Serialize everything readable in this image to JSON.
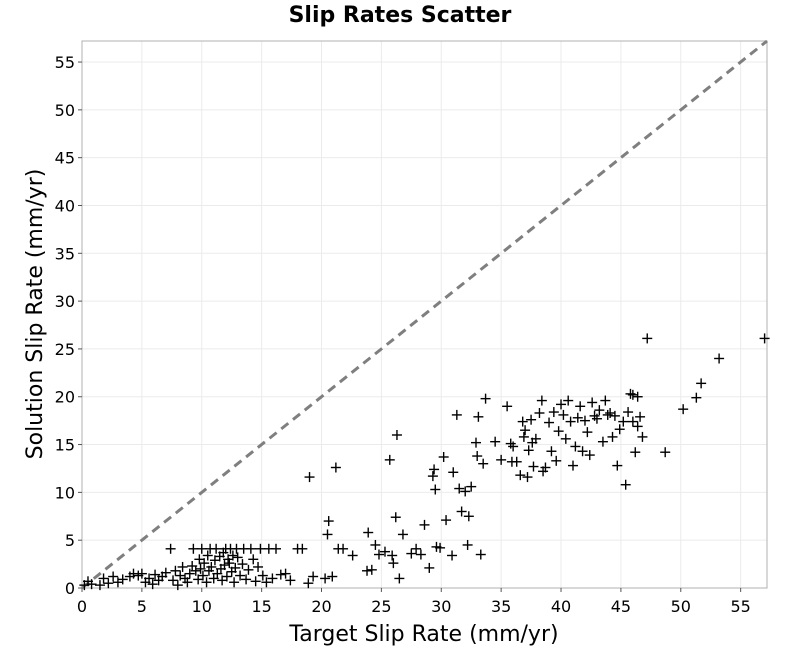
{
  "chart_data": {
    "type": "scatter",
    "title": "Slip Rates Scatter",
    "xlabel": "Target Slip Rate (mm/yr)",
    "ylabel": "Solution Slip Rate (mm/yr)",
    "xlim": [
      0,
      57.2
    ],
    "ylim": [
      0,
      57.2
    ],
    "xticks": [
      "0",
      "5",
      "10",
      "15",
      "20",
      "25",
      "30",
      "35",
      "40",
      "45",
      "50",
      "55"
    ],
    "yticks": [
      "0",
      "5",
      "10",
      "15",
      "20",
      "25",
      "30",
      "35",
      "40",
      "45",
      "50",
      "55"
    ],
    "grid": true,
    "marker": "plus",
    "reference_line": {
      "style": "dashed",
      "color": "#7f7f7f",
      "from": [
        0,
        0
      ],
      "to": [
        57.2,
        57.2
      ]
    },
    "series": [
      {
        "color": "#000000",
        "points": [
          [
            0.2,
            0.3
          ],
          [
            0.5,
            0.7
          ],
          [
            0.8,
            0.4
          ],
          [
            1.5,
            0.3
          ],
          [
            1.8,
            1.0
          ],
          [
            2.2,
            0.5
          ],
          [
            2.6,
            1.2
          ],
          [
            3.0,
            0.6
          ],
          [
            3.4,
            0.9
          ],
          [
            4.0,
            1.2
          ],
          [
            4.3,
            1.5
          ],
          [
            4.7,
            1.3
          ],
          [
            5.0,
            1.5
          ],
          [
            5.3,
            0.6
          ],
          [
            5.6,
            1.0
          ],
          [
            5.9,
            0.4
          ],
          [
            6.1,
            1.4
          ],
          [
            6.4,
            0.8
          ],
          [
            6.7,
            1.2
          ],
          [
            7.0,
            1.6
          ],
          [
            7.4,
            4.1
          ],
          [
            7.6,
            0.8
          ],
          [
            7.8,
            1.8
          ],
          [
            8.0,
            0.3
          ],
          [
            8.2,
            1.3
          ],
          [
            8.4,
            2.2
          ],
          [
            8.6,
            1.0
          ],
          [
            8.8,
            0.6
          ],
          [
            9.0,
            1.5
          ],
          [
            9.2,
            2.3
          ],
          [
            9.3,
            4.1
          ],
          [
            9.5,
            1.8
          ],
          [
            9.7,
            0.9
          ],
          [
            9.8,
            3.0
          ],
          [
            9.9,
            2.0
          ],
          [
            10.0,
            4.1
          ],
          [
            10.1,
            1.3
          ],
          [
            10.2,
            2.6
          ],
          [
            10.4,
            0.6
          ],
          [
            10.5,
            3.4
          ],
          [
            10.6,
            1.8
          ],
          [
            10.7,
            4.1
          ],
          [
            10.8,
            2.2
          ],
          [
            11.0,
            1.0
          ],
          [
            11.1,
            2.9
          ],
          [
            11.2,
            4.1
          ],
          [
            11.3,
            1.5
          ],
          [
            11.5,
            3.3
          ],
          [
            11.6,
            2.0
          ],
          [
            11.7,
            0.8
          ],
          [
            11.8,
            3.7
          ],
          [
            11.9,
            2.4
          ],
          [
            12.0,
            4.1
          ],
          [
            12.1,
            1.2
          ],
          [
            12.2,
            3.0
          ],
          [
            12.3,
            2.6
          ],
          [
            12.4,
            4.1
          ],
          [
            12.5,
            1.7
          ],
          [
            12.6,
            3.4
          ],
          [
            12.7,
            0.6
          ],
          [
            12.8,
            2.1
          ],
          [
            12.9,
            4.1
          ],
          [
            13.0,
            3.2
          ],
          [
            13.2,
            1.3
          ],
          [
            13.4,
            2.5
          ],
          [
            13.5,
            4.1
          ],
          [
            13.7,
            0.9
          ],
          [
            13.9,
            1.9
          ],
          [
            14.1,
            4.1
          ],
          [
            14.3,
            3.0
          ],
          [
            14.5,
            0.7
          ],
          [
            14.7,
            2.2
          ],
          [
            14.9,
            4.1
          ],
          [
            15.1,
            1.3
          ],
          [
            15.4,
            0.6
          ],
          [
            15.6,
            4.1
          ],
          [
            15.9,
            1.0
          ],
          [
            16.2,
            4.1
          ],
          [
            16.6,
            1.4
          ],
          [
            17.0,
            1.5
          ],
          [
            17.4,
            0.8
          ],
          [
            18.0,
            4.1
          ],
          [
            18.4,
            4.1
          ],
          [
            18.9,
            0.5
          ],
          [
            19.3,
            1.2
          ],
          [
            19.0,
            11.6
          ],
          [
            20.3,
            1.0
          ],
          [
            20.6,
            7.0
          ],
          [
            20.9,
            1.2
          ],
          [
            20.5,
            5.6
          ],
          [
            21.2,
            12.6
          ],
          [
            21.4,
            4.1
          ],
          [
            21.8,
            4.1
          ],
          [
            22.6,
            3.4
          ],
          [
            23.8,
            1.8
          ],
          [
            23.9,
            5.8
          ],
          [
            24.2,
            1.9
          ],
          [
            24.5,
            4.5
          ],
          [
            24.8,
            3.5
          ],
          [
            25.3,
            3.8
          ],
          [
            25.7,
            13.4
          ],
          [
            25.9,
            3.4
          ],
          [
            26.0,
            2.6
          ],
          [
            26.2,
            7.4
          ],
          [
            26.3,
            16.0
          ],
          [
            26.5,
            1.0
          ],
          [
            26.8,
            5.6
          ],
          [
            27.5,
            3.6
          ],
          [
            27.9,
            4.1
          ],
          [
            28.3,
            3.5
          ],
          [
            28.6,
            6.6
          ],
          [
            29.0,
            2.1
          ],
          [
            29.3,
            11.7
          ],
          [
            29.4,
            12.4
          ],
          [
            29.5,
            10.3
          ],
          [
            29.6,
            4.3
          ],
          [
            29.9,
            4.2
          ],
          [
            30.4,
            7.1
          ],
          [
            30.9,
            3.4
          ],
          [
            30.2,
            13.7
          ],
          [
            31.0,
            12.1
          ],
          [
            31.3,
            18.1
          ],
          [
            31.5,
            10.4
          ],
          [
            31.7,
            8.0
          ],
          [
            32.0,
            10.1
          ],
          [
            32.2,
            4.5
          ],
          [
            32.3,
            7.5
          ],
          [
            32.5,
            10.6
          ],
          [
            32.9,
            15.2
          ],
          [
            33.0,
            13.8
          ],
          [
            33.1,
            17.9
          ],
          [
            33.3,
            3.5
          ],
          [
            33.5,
            13.0
          ],
          [
            33.7,
            19.8
          ],
          [
            34.5,
            15.3
          ],
          [
            35.0,
            13.4
          ],
          [
            35.5,
            19.0
          ],
          [
            35.8,
            15.1
          ],
          [
            35.9,
            13.2
          ],
          [
            36.0,
            14.8
          ],
          [
            36.3,
            13.2
          ],
          [
            36.6,
            11.8
          ],
          [
            36.8,
            17.4
          ],
          [
            36.9,
            15.8
          ],
          [
            37.0,
            16.5
          ],
          [
            37.2,
            11.6
          ],
          [
            37.3,
            14.4
          ],
          [
            37.5,
            17.6
          ],
          [
            37.6,
            15.2
          ],
          [
            37.7,
            12.7
          ],
          [
            37.9,
            15.6
          ],
          [
            38.2,
            18.3
          ],
          [
            38.4,
            19.6
          ],
          [
            38.5,
            12.2
          ],
          [
            38.7,
            12.6
          ],
          [
            39.0,
            17.3
          ],
          [
            39.2,
            14.3
          ],
          [
            39.4,
            18.4
          ],
          [
            39.6,
            13.3
          ],
          [
            39.8,
            16.4
          ],
          [
            40.0,
            19.2
          ],
          [
            40.2,
            18.1
          ],
          [
            40.4,
            15.6
          ],
          [
            40.6,
            19.6
          ],
          [
            40.8,
            17.4
          ],
          [
            41.0,
            12.8
          ],
          [
            41.2,
            14.8
          ],
          [
            41.4,
            17.8
          ],
          [
            41.6,
            19.0
          ],
          [
            41.8,
            14.3
          ],
          [
            42.0,
            17.5
          ],
          [
            42.2,
            16.3
          ],
          [
            42.4,
            13.9
          ],
          [
            42.6,
            19.4
          ],
          [
            42.8,
            18.0
          ],
          [
            43.0,
            17.7
          ],
          [
            43.2,
            18.6
          ],
          [
            43.5,
            15.3
          ],
          [
            43.7,
            19.6
          ],
          [
            43.9,
            18.1
          ],
          [
            44.1,
            18.3
          ],
          [
            44.3,
            15.8
          ],
          [
            44.5,
            18.0
          ],
          [
            44.7,
            12.8
          ],
          [
            44.9,
            16.6
          ],
          [
            45.2,
            17.4
          ],
          [
            45.4,
            10.8
          ],
          [
            45.6,
            18.4
          ],
          [
            45.8,
            20.3
          ],
          [
            46.0,
            17.4
          ],
          [
            46.2,
            14.2
          ],
          [
            46.4,
            16.9
          ],
          [
            46.6,
            17.9
          ],
          [
            46.8,
            15.8
          ],
          [
            47.2,
            26.1
          ],
          [
            46.0,
            20.2
          ],
          [
            46.4,
            20.0
          ],
          [
            48.7,
            14.2
          ],
          [
            50.2,
            18.7
          ],
          [
            51.3,
            19.9
          ],
          [
            51.7,
            21.4
          ],
          [
            53.2,
            24.0
          ],
          [
            57.0,
            26.1
          ]
        ]
      }
    ]
  }
}
